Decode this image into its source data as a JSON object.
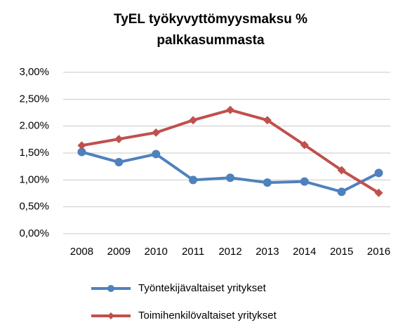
{
  "chart_data": {
    "type": "line",
    "title": [
      "TyEL työkyvyttömyysmaksu %",
      "palkkasummasta"
    ],
    "categories": [
      "2008",
      "2009",
      "2010",
      "2011",
      "2012",
      "2013",
      "2014",
      "2015",
      "2016"
    ],
    "series": [
      {
        "name": "Työntekijävaltaiset yritykset",
        "color": "#4f81bd",
        "marker": "circle",
        "values": [
          1.52,
          1.33,
          1.48,
          1.0,
          1.04,
          0.95,
          0.97,
          0.78,
          1.13
        ]
      },
      {
        "name": "Toimihenkilövaltaiset yritykset",
        "color": "#c0504d",
        "marker": "diamond",
        "values": [
          1.64,
          1.76,
          1.88,
          2.11,
          2.3,
          2.11,
          1.65,
          1.18,
          0.76
        ]
      }
    ],
    "ylim": [
      0,
      3
    ],
    "yticks": [
      {
        "value": 0,
        "label": "0,00%"
      },
      {
        "value": 0.5,
        "label": "0,50%"
      },
      {
        "value": 1,
        "label": "1,00%"
      },
      {
        "value": 1.5,
        "label": "1,50%"
      },
      {
        "value": 2,
        "label": "2.00%"
      },
      {
        "value": 2.5,
        "label": "2,50%"
      },
      {
        "value": 3,
        "label": "3,00%"
      }
    ],
    "grid": true,
    "legend": "bottom"
  }
}
